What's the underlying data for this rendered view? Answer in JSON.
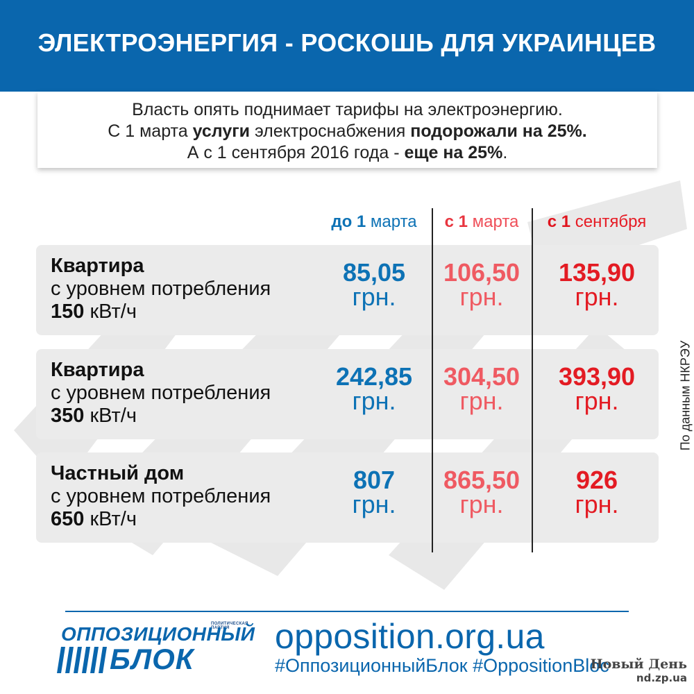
{
  "header": {
    "title": "ЭЛЕКТРОЭНЕРГИЯ - РОСКОШЬ ДЛЯ УКРАИНЦЕВ"
  },
  "intro": {
    "line1": "Власть опять поднимает тарифы на электроэнергию.",
    "line2_a": "С 1 марта ",
    "line2_b": "услуги",
    "line2_c": " электроснабжения ",
    "line2_d": "подорожали на 25%.",
    "line3_a": "А с 1 сентября 2016 года - ",
    "line3_b": "еще на 25%",
    "line3_c": "."
  },
  "columns": [
    {
      "pre": "до ",
      "num": "1",
      "post": " марта"
    },
    {
      "pre": "с ",
      "num": "1",
      "post": " марта"
    },
    {
      "pre": "с ",
      "num": "1",
      "post": " сентября"
    }
  ],
  "rows": [
    {
      "title": "Квартира",
      "subtitle": "с уровнем потребления",
      "amount": "150",
      "unit": " кВт/ч",
      "prices": [
        "85,05",
        "106,50",
        "135,90"
      ]
    },
    {
      "title": "Квартира",
      "subtitle": "с уровнем потребления",
      "amount": "350",
      "unit": " кВт/ч",
      "prices": [
        "242,85",
        "304,50",
        "393,90"
      ]
    },
    {
      "title": "Частный дом",
      "subtitle": "с уровнем потребления",
      "amount": "650",
      "unit": " кВт/ч",
      "prices": [
        "807",
        "865,50",
        "926"
      ]
    }
  ],
  "currency": "грн.",
  "source": "По данным НКРЭУ",
  "footer": {
    "logo_small": "ПОЛИТИЧЕСКАЯ ПАРТИЯ",
    "logo_line1": "ОППОЗИЦИОННЫЙ",
    "logo_line2": "БЛОК",
    "website": "opposition.org.ua",
    "hashtags": "#ОппозиционныйБлок #OppositionBloc",
    "nd_title": "Новый День",
    "nd_url": "nd.zp.ua"
  },
  "colors": {
    "brand_blue": "#0a66ad",
    "price_blue": "#0d72b5",
    "price_pink": "#ef5a62",
    "price_red": "#e31b23"
  }
}
